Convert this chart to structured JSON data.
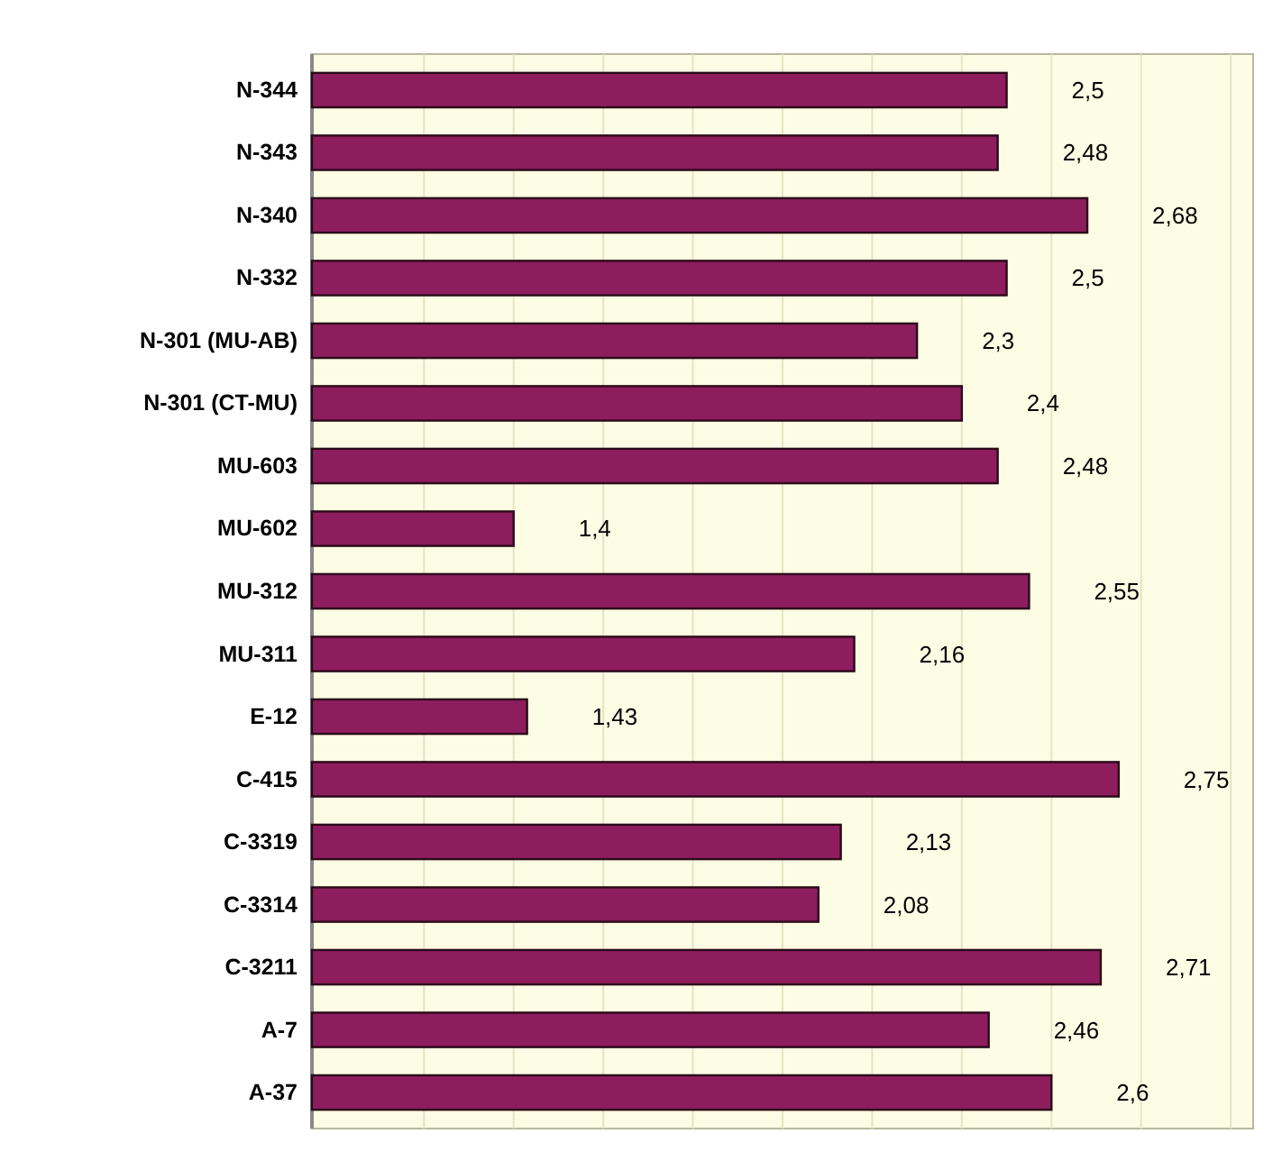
{
  "chart_data": {
    "type": "bar",
    "orientation": "horizontal",
    "categories": [
      "N-344",
      "N-343",
      "N-340",
      "N-332",
      "N-301 (MU-AB)",
      "N-301 (CT-MU)",
      "MU-603",
      "MU-602",
      "MU-312",
      "MU-311",
      "E-12",
      "C-415",
      "C-3319",
      "C-3314",
      "C-3211",
      "A-7",
      "A-37"
    ],
    "values": [
      2.5,
      2.48,
      2.68,
      2.5,
      2.3,
      2.4,
      2.48,
      1.4,
      2.55,
      2.16,
      1.43,
      2.75,
      2.13,
      2.08,
      2.71,
      2.46,
      2.6
    ],
    "value_labels": [
      "2,5",
      "2,48",
      "2,68",
      "2,5",
      "2,3",
      "2,4",
      "2,48",
      "1,4",
      "2,55",
      "2,16",
      "1,43",
      "2,75",
      "2,13",
      "2,08",
      "2,71",
      "2,46",
      "2,6"
    ],
    "color": "#8e1d5e",
    "xlim": [
      0.95,
      3.05
    ],
    "xticks": [
      {
        "value": 1.2,
        "label": null
      },
      {
        "value": 1.4,
        "label": null
      },
      {
        "value": 1.6,
        "label": null
      },
      {
        "value": 1.8,
        "label": null
      },
      {
        "value": 2.0,
        "label": null
      },
      {
        "value": 2.2,
        "label": null
      },
      {
        "value": 2.4,
        "label": null
      },
      {
        "value": 2.6,
        "label": null
      },
      {
        "value": 2.8,
        "label": null
      },
      {
        "value": 3.0,
        "label": null
      }
    ],
    "grid": "x",
    "tick_labels": "y"
  }
}
